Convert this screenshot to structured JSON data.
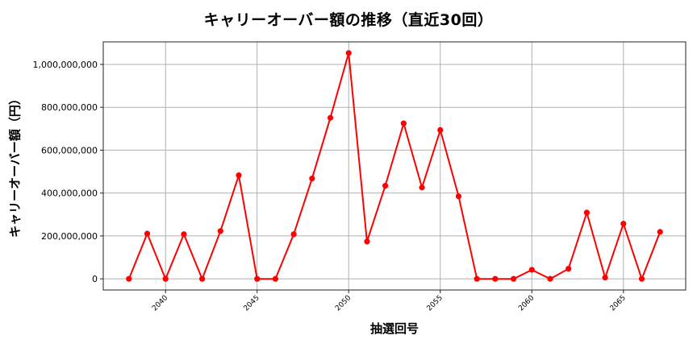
{
  "title": "キャリーオーバー額の推移（直近30回）",
  "chart_data": {
    "type": "line",
    "title": "キャリーオーバー額の推移（直近30回）",
    "xlabel": "抽選回号",
    "ylabel": "キャリーオーバー額（円）",
    "x": [
      2038,
      2039,
      2040,
      2041,
      2042,
      2043,
      2044,
      2045,
      2046,
      2047,
      2048,
      2049,
      2050,
      2051,
      2052,
      2053,
      2054,
      2055,
      2056,
      2057,
      2058,
      2059,
      2060,
      2061,
      2062,
      2063,
      2064,
      2065,
      2066,
      2067
    ],
    "series": [
      {
        "name": "キャリーオーバー額",
        "color": "#ff0000",
        "marker": "circle",
        "values": [
          0,
          211000000,
          0,
          208000000,
          0,
          223000000,
          483000000,
          0,
          0,
          208000000,
          468000000,
          751000000,
          1053000000,
          174000000,
          434000000,
          725000000,
          426000000,
          694000000,
          385000000,
          0,
          0,
          0,
          42000000,
          0,
          47000000,
          309000000,
          6000000,
          257000000,
          0,
          219000000
        ]
      }
    ],
    "xticks": [
      2040,
      2045,
      2050,
      2055,
      2060,
      2065
    ],
    "xtick_labels": [
      "2040",
      "2045",
      "2050",
      "2055",
      "2060",
      "2065"
    ],
    "yticks": [
      0,
      200000000,
      400000000,
      600000000,
      800000000,
      1000000000
    ],
    "ytick_labels": [
      "0",
      "200,000,000",
      "400,000,000",
      "600,000,000",
      "800,000,000",
      "1,000,000,000"
    ],
    "xlim": [
      2036.6,
      2068.4
    ],
    "ylim": [
      -52000000,
      1105000000
    ],
    "grid": true,
    "legend": "none"
  }
}
